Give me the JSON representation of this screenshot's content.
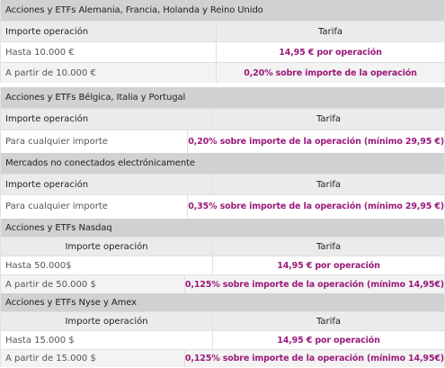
{
  "colors": {
    "accent": "#9b1a7b",
    "header_bg": "#d1d1d1",
    "colhead_bg": "#ebebeb",
    "row_alt_bg": "#f3f3f3"
  },
  "sections": [
    {
      "title": "Acciones y ETFs Alemania, Francia, Holanda y Reino Unido",
      "col_importe": "Importe operación",
      "col_tarifa": "Tarifa",
      "rows": [
        {
          "importe": "Hasta 10.000 €",
          "tarifa": "14,95 € por operación"
        },
        {
          "importe": "A partir de 10.000 €",
          "tarifa": "0,20% sobre importe de la operación"
        }
      ]
    },
    {
      "title": "Acciones y ETFs Bélgica, Italia y Portugal",
      "col_importe": "Importe operación",
      "col_tarifa": "Tarifa",
      "rows": [
        {
          "importe": "Para cualquier importe",
          "tarifa": "0,20% sobre importe de la operación (mínimo 29,95 €)"
        }
      ]
    },
    {
      "title": "Mercados no conectados electrónicamente",
      "col_importe": "Importe operación",
      "col_tarifa": "Tarifa",
      "rows": [
        {
          "importe": "Para cualquier importe",
          "tarifa": "0,35% sobre importe de la operación (mínimo 29,95 €)"
        }
      ]
    },
    {
      "title": "Acciones y ETFs Nasdaq",
      "col_importe": "Importe operación",
      "col_tarifa": "Tarifa",
      "rows": [
        {
          "importe": "Hasta 50.000$",
          "tarifa": "14,95 € por operación"
        },
        {
          "importe": "A partir de 50.000 $",
          "tarifa": "0,125% sobre importe de la operación (mínimo 14,95€)"
        }
      ]
    },
    {
      "title": "Acciones y ETFs Nyse y Amex",
      "col_importe": "Importe operación",
      "col_tarifa": "Tarifa",
      "rows": [
        {
          "importe": "Hasta 15.000 $",
          "tarifa": "14,95 € por operación"
        },
        {
          "importe": "A partir de 15.000 $",
          "tarifa": "0,125% sobre importe de la operación (mínimo 14,95€)"
        }
      ]
    }
  ]
}
